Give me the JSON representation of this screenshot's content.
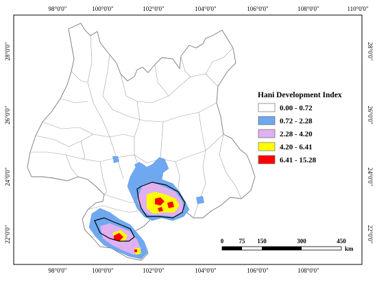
{
  "map": {
    "ticks": {
      "top": [
        "98°0'0\"",
        "100°0'0\"",
        "102°0'0\"",
        "104°0'0\"",
        "106°0'0\"",
        "108°0'0\"",
        "110°0'0\""
      ],
      "bottom": [
        "98°0'0\"",
        "100°0'0\"",
        "102°0'0\"",
        "104°0'0\"",
        "106°0'0\"",
        "108°0'0\""
      ],
      "left": [
        "28°0'0\"",
        "26°0'0\"",
        "24°0'0\"",
        "22°0'0\""
      ],
      "right": [
        "28°0'0\"",
        "26°0'0\"",
        "24°0'0\"",
        "22°0'0\""
      ]
    }
  },
  "legend": {
    "title": "Hani Development Index",
    "items": [
      {
        "label": "0.00 - 0.72",
        "color": "#ffffff"
      },
      {
        "label": "0.72 - 2.28",
        "color": "#6fa8f0"
      },
      {
        "label": "2.28 - 4.20",
        "color": "#e0b0f0"
      },
      {
        "label": "4.20 - 6.41",
        "color": "#ffff00"
      },
      {
        "label": "6.41 - 15.28",
        "color": "#ff0000"
      }
    ]
  },
  "scalebar": {
    "labels": [
      "0",
      "75",
      "150",
      "300",
      "450"
    ],
    "unit": "km"
  }
}
